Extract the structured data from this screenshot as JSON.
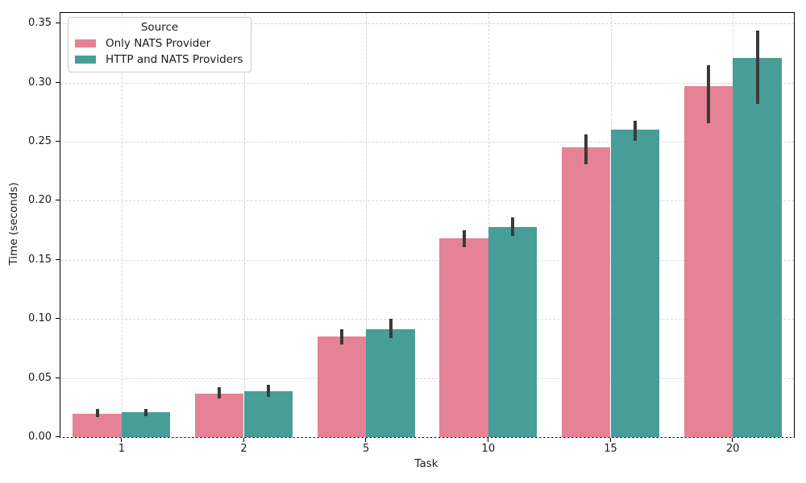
{
  "figure": {
    "background_color": "#ffffff",
    "spine_color": "#000000",
    "grid_color": "#d7d7d7",
    "errorbar_color": "#3a3a3a",
    "text_color": "#1a1a1a"
  },
  "chart_data": {
    "type": "bar",
    "title": "",
    "xlabel": "Task",
    "ylabel": "Time (seconds)",
    "categories": [
      "1",
      "2",
      "5",
      "10",
      "15",
      "20"
    ],
    "series": [
      {
        "name": "Only NATS Provider",
        "color": "#e58296",
        "values": [
          0.02,
          0.037,
          0.085,
          0.168,
          0.245,
          0.297
        ],
        "err_low": [
          0.017,
          0.033,
          0.078,
          0.161,
          0.231,
          0.266
        ],
        "err_high": [
          0.024,
          0.042,
          0.091,
          0.175,
          0.256,
          0.315
        ]
      },
      {
        "name": "HTTP and NATS Providers",
        "color": "#479e96",
        "values": [
          0.021,
          0.039,
          0.091,
          0.178,
          0.26,
          0.321
        ],
        "err_low": [
          0.018,
          0.034,
          0.084,
          0.17,
          0.251,
          0.282
        ],
        "err_high": [
          0.024,
          0.044,
          0.1,
          0.186,
          0.268,
          0.344
        ]
      }
    ],
    "ylim": [
      0,
      0.359
    ],
    "yticks": [
      0.0,
      0.05,
      0.1,
      0.15,
      0.2,
      0.25,
      0.3,
      0.35
    ],
    "ytick_label_format": "2dp",
    "grid": true,
    "legend": {
      "title": "Source",
      "position": "upper left"
    }
  }
}
